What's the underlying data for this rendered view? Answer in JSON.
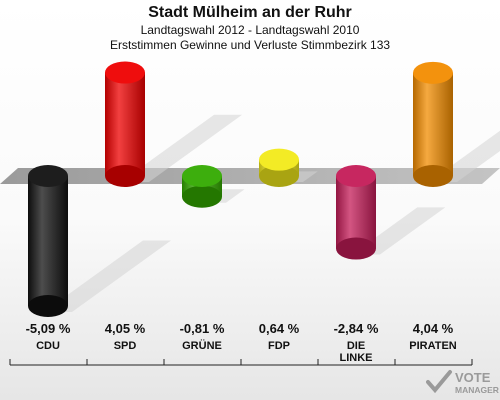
{
  "header": {
    "title": "Stadt Mülheim an der Ruhr",
    "subtitle": "Landtagswahl 2012 - Landtagswahl 2010",
    "description": "Erststimmen Gewinne und Verluste Stimmbezirk 133"
  },
  "chart_data": {
    "type": "bar",
    "title": "Stadt Mülheim an der Ruhr",
    "subtitle": "Landtagswahl 2012 - Landtagswahl 2010",
    "description": "Erststimmen Gewinne und Verluste Stimmbezirk 133",
    "categories": [
      "CDU",
      "SPD",
      "GRÜNE",
      "FDP",
      "DIE LINKE",
      "PIRATEN"
    ],
    "category_lines": [
      [
        "CDU"
      ],
      [
        "SPD"
      ],
      [
        "GRÜNE"
      ],
      [
        "FDP"
      ],
      [
        "DIE",
        "LINKE"
      ],
      [
        "PIRATEN"
      ]
    ],
    "values": [
      -5.09,
      4.05,
      -0.81,
      0.64,
      -2.84,
      4.04
    ],
    "value_labels": [
      "-5,09 %",
      "4,05 %",
      "-0,81 %",
      "0,64 %",
      "-2,84 %",
      "4,04 %"
    ],
    "colors": [
      "#111111",
      "#ee0000",
      "#33aa00",
      "#f2ea1a",
      "#c41c58",
      "#f28c00"
    ],
    "ylim": [
      -5.09,
      4.05
    ],
    "grid": false,
    "legend": "none"
  },
  "watermark": {
    "main": "VOTE",
    "sub": "MANAGER"
  }
}
